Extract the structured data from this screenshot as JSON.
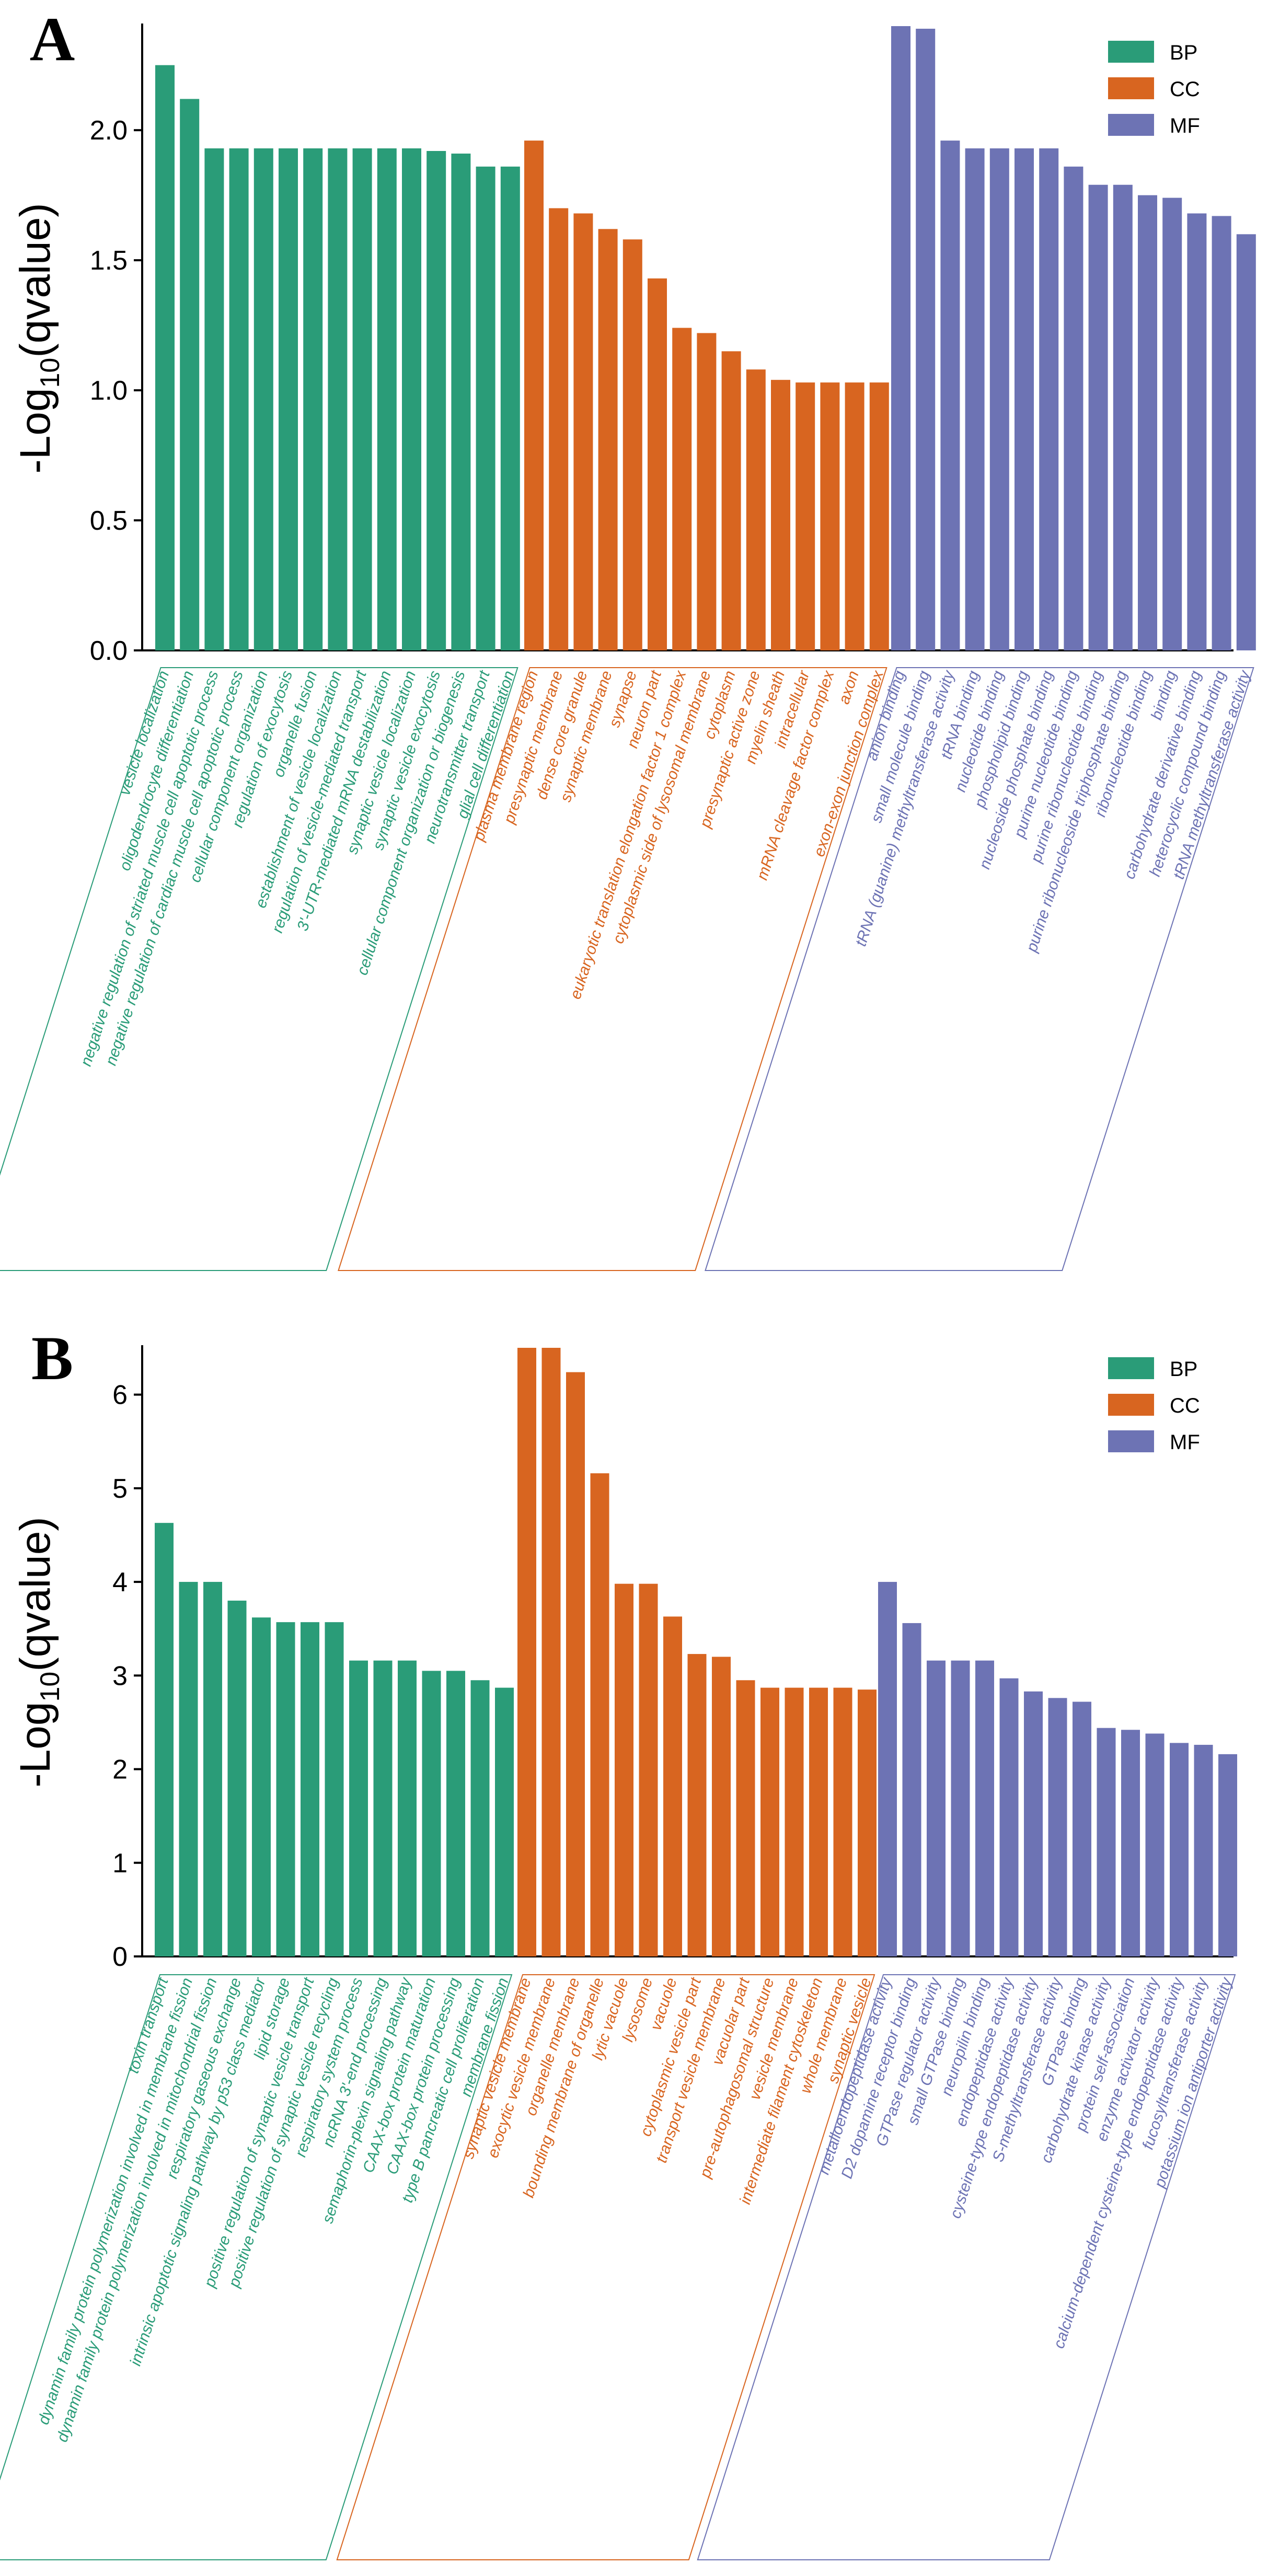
{
  "colors": {
    "BP": "#2a9c78",
    "CC": "#d86520",
    "MF": "#6d73b4"
  },
  "chart_data": [
    {
      "panel": "A",
      "type": "bar",
      "ylabel": "-Log10(qvalue)",
      "ylim": [
        0,
        2.4
      ],
      "yticks": [
        "0.0",
        "0.5",
        "1.0",
        "1.5",
        "2.0"
      ],
      "legend": [
        "BP",
        "CC",
        "MF"
      ],
      "legend_position": "top-right",
      "groups": [
        {
          "name": "BP",
          "categories": [
            "vesicle localization",
            "oligodendrocyte differentiation",
            "negative regulation of striated muscle cell apoptotic process",
            "negative regulation of cardiac muscle cell apoptotic process",
            "cellular component organization",
            "regulation of exocytosis",
            "organelle fusion",
            "establishment of vesicle localization",
            "regulation of vesicle-mediated transport",
            "3'-UTR-mediated mRNA destabilization",
            "synaptic vesicle localization",
            "synaptic vesicle exocytosis",
            "cellular component organization or biogenesis",
            "neurotransmitter transport",
            "glial cell differentiation"
          ],
          "values": [
            2.25,
            2.12,
            1.93,
            1.93,
            1.93,
            1.93,
            1.93,
            1.93,
            1.93,
            1.93,
            1.93,
            1.92,
            1.91,
            1.86,
            1.86
          ]
        },
        {
          "name": "CC",
          "categories": [
            "plasma membrane region",
            "presynaptic membrane",
            "dense core granule",
            "synaptic membrane",
            "synapse",
            "neuron part",
            "eukaryotic translation elongation factor 1 complex",
            "cytoplasmic side of lysosomal membrane",
            "cytoplasm",
            "presynaptic active zone",
            "myelin sheath",
            "intracellular",
            "mRNA cleavage factor complex",
            "axon",
            "exon-exon junction complex"
          ],
          "values": [
            1.96,
            1.7,
            1.68,
            1.62,
            1.58,
            1.43,
            1.24,
            1.22,
            1.15,
            1.08,
            1.04,
            1.03,
            1.03,
            1.03,
            1.03
          ]
        },
        {
          "name": "MF",
          "categories": [
            "anion binding",
            "small molecule binding",
            "tRNA (guanine) methyltransferase activity",
            "tRNA binding",
            "nucleotide binding",
            "phospholipid binding",
            "nucleoside phosphate binding",
            "purine nucleotide binding",
            "purine ribonucleotide binding",
            "purine ribonucleoside triphosphate binding",
            "ribonucleotide binding",
            "binding",
            "carbohydrate derivative binding",
            "heterocyclic compound binding",
            "tRNA methyltransferase activity"
          ],
          "values": [
            2.4,
            2.39,
            1.96,
            1.93,
            1.93,
            1.93,
            1.93,
            1.86,
            1.79,
            1.79,
            1.75,
            1.74,
            1.68,
            1.67,
            1.6
          ]
        }
      ]
    },
    {
      "panel": "B",
      "type": "bar",
      "ylabel": "-Log10(qvalue)",
      "ylim": [
        0,
        6.5
      ],
      "yticks": [
        "0",
        "1",
        "2",
        "3",
        "4",
        "5",
        "6"
      ],
      "legend": [
        "BP",
        "CC",
        "MF"
      ],
      "legend_position": "top-right",
      "groups": [
        {
          "name": "BP",
          "categories": [
            "toxin transport",
            "dynamin family protein polymerization involved in membrane fission",
            "dynamin family protein polymerization involved in mitochondrial fission",
            "respiratory gaseous exchange",
            "intrinsic apoptotic signaling pathway by p53 class mediator",
            "lipid storage",
            "positive regulation of synaptic vesicle transport",
            "positive regulation of synaptic vesicle recycling",
            "respiratory system process",
            "ncRNA 3'-end processing",
            "semaphorin-plexin signaling pathway",
            "CAAX-box protein maturation",
            "CAAX-box protein processing",
            "type B pancreatic cell proliferation",
            "membrane fission"
          ],
          "values": [
            4.63,
            4.0,
            4.0,
            3.8,
            3.62,
            3.57,
            3.57,
            3.57,
            3.16,
            3.16,
            3.16,
            3.05,
            3.05,
            2.95,
            2.87
          ]
        },
        {
          "name": "CC",
          "categories": [
            "synaptic vesicle membrane",
            "exocytic vesicle membrane",
            "organelle membrane",
            "bounding membrane of organelle",
            "lytic vacuole",
            "lysosome",
            "vacuole",
            "cytoplasmic vesicle part",
            "transport vesicle membrane",
            "vacuolar part",
            "pre-autophagosomal structure",
            "vesicle membrane",
            "intermediate filament cytoskeleton",
            "whole membrane",
            "synaptic vesicle"
          ],
          "values": [
            6.5,
            6.5,
            6.24,
            5.16,
            3.98,
            3.98,
            3.63,
            3.23,
            3.2,
            2.95,
            2.87,
            2.87,
            2.87,
            2.87,
            2.85
          ]
        },
        {
          "name": "MF",
          "categories": [
            "metalloendopeptidase activity",
            "D2 dopamine receptor binding",
            "GTPase regulator activity",
            "small GTPase binding",
            "neuropilin binding",
            "endopeptidase activity",
            "cysteine-type endopeptidase activity",
            "S-methyltransferase activity",
            "GTPase binding",
            "carbohydrate kinase activity",
            "protein self-association",
            "enzyme activator activity",
            "calcium-dependent cysteine-type endopeptidase activity",
            "fucosyltransferase activity",
            "potassium ion antiporter activity"
          ],
          "values": [
            4.0,
            3.56,
            3.16,
            3.16,
            3.16,
            2.97,
            2.83,
            2.76,
            2.72,
            2.44,
            2.42,
            2.38,
            2.28,
            2.26,
            2.16
          ]
        }
      ]
    }
  ]
}
